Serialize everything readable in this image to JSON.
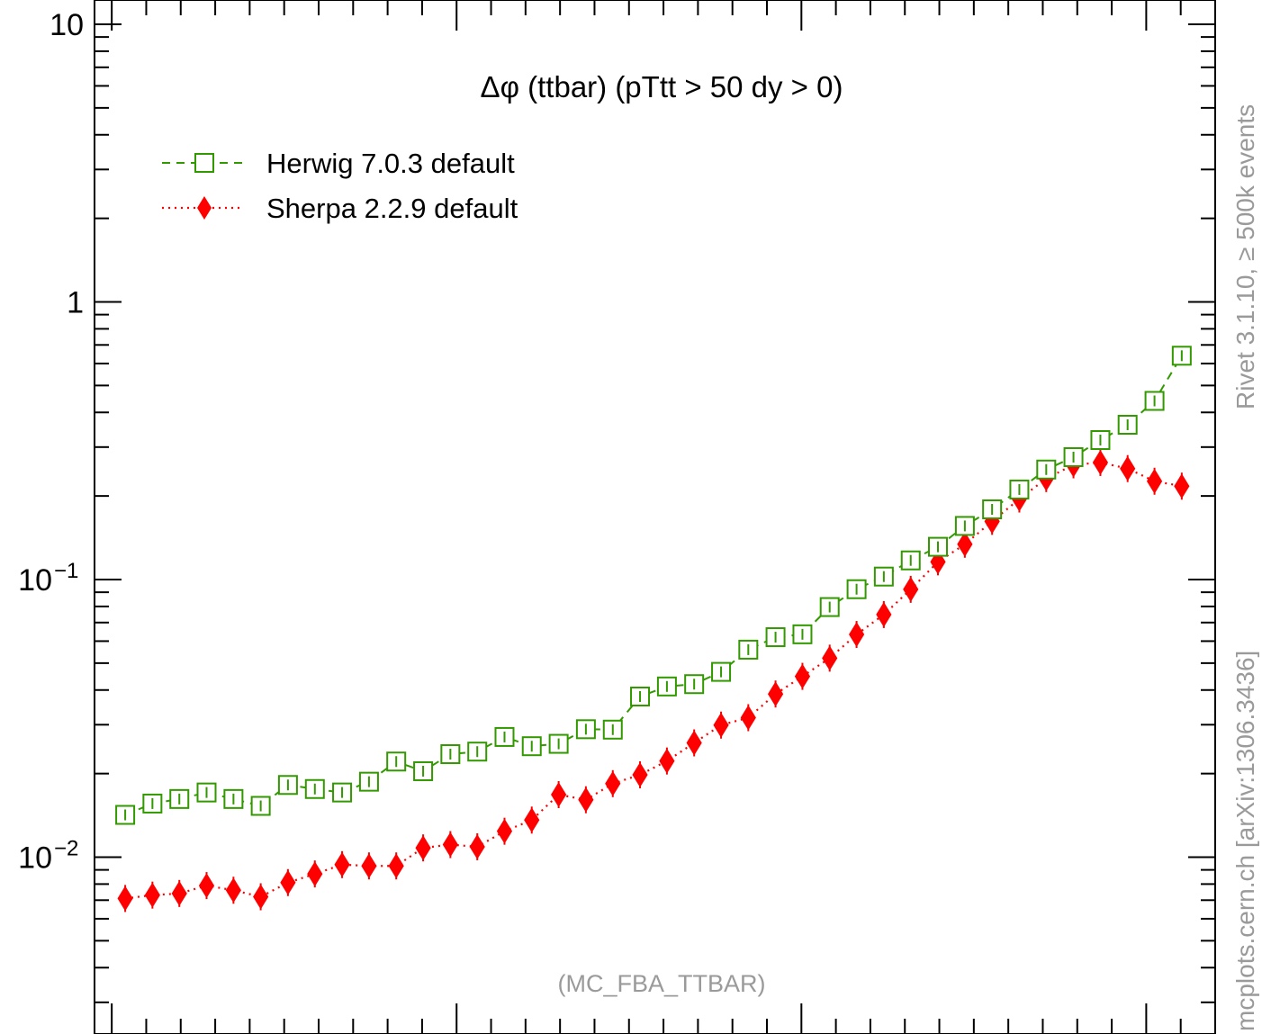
{
  "chart_data": {
    "type": "line",
    "title": "Δφ (ttbar) (pTtt > 50 dy > 0)",
    "x_range": [
      -0.05,
      3.2
    ],
    "y_range": [
      0.003,
      10
    ],
    "y_scale": "log",
    "y_ticks": [
      {
        "value": 10,
        "label": "10",
        "exp": ""
      },
      {
        "value": 1,
        "label": "1",
        "exp": ""
      },
      {
        "value": 0.1,
        "label": "10",
        "exp": "−1"
      },
      {
        "value": 0.01,
        "label": "10",
        "exp": "−2"
      }
    ],
    "x_major_ticks": [
      0,
      1,
      2,
      3
    ],
    "legend_position": "top-left",
    "series": [
      {
        "name": "Herwig 7.0.3 default",
        "color": "#339900",
        "line": "dashed",
        "marker": "open-square",
        "x": [
          0.039,
          0.118,
          0.196,
          0.275,
          0.353,
          0.432,
          0.511,
          0.589,
          0.668,
          0.746,
          0.825,
          0.903,
          0.982,
          1.06,
          1.139,
          1.218,
          1.296,
          1.375,
          1.453,
          1.532,
          1.61,
          1.689,
          1.767,
          1.846,
          1.925,
          2.003,
          2.082,
          2.16,
          2.239,
          2.317,
          2.396,
          2.474,
          2.553,
          2.632,
          2.71,
          2.789,
          2.867,
          2.946,
          3.024,
          3.103
        ],
        "values": [
          0.0142,
          0.0156,
          0.0162,
          0.0171,
          0.0162,
          0.0153,
          0.0182,
          0.0176,
          0.0171,
          0.0187,
          0.0221,
          0.0204,
          0.0235,
          0.024,
          0.0271,
          0.0251,
          0.0256,
          0.0289,
          0.0288,
          0.0379,
          0.0412,
          0.042,
          0.0465,
          0.0559,
          0.062,
          0.0635,
          0.0796,
          0.0923,
          0.1025,
          0.1172,
          0.1312,
          0.156,
          0.179,
          0.211,
          0.249,
          0.276,
          0.318,
          0.361,
          0.44,
          0.64
        ]
      },
      {
        "name": "Sherpa 2.2.9 default",
        "color": "#ff0000",
        "line": "dotted",
        "marker": "filled-diamond",
        "x": [
          0.039,
          0.118,
          0.196,
          0.275,
          0.353,
          0.432,
          0.511,
          0.589,
          0.668,
          0.746,
          0.825,
          0.903,
          0.982,
          1.06,
          1.139,
          1.218,
          1.296,
          1.375,
          1.453,
          1.532,
          1.61,
          1.689,
          1.767,
          1.846,
          1.925,
          2.003,
          2.082,
          2.16,
          2.239,
          2.317,
          2.396,
          2.474,
          2.553,
          2.632,
          2.71,
          2.789,
          2.867,
          2.946,
          3.024,
          3.103
        ],
        "values": [
          0.0071,
          0.0073,
          0.0074,
          0.0079,
          0.0076,
          0.0072,
          0.0081,
          0.0087,
          0.0094,
          0.0093,
          0.0093,
          0.0108,
          0.0111,
          0.0109,
          0.0124,
          0.0136,
          0.0168,
          0.0161,
          0.0184,
          0.0198,
          0.0222,
          0.0258,
          0.0299,
          0.0318,
          0.0387,
          0.0448,
          0.0521,
          0.0634,
          0.0748,
          0.0922,
          0.1158,
          0.134,
          0.162,
          0.195,
          0.231,
          0.259,
          0.264,
          0.251,
          0.226,
          0.217
        ]
      }
    ],
    "annotation": "(MC_FBA_TTBAR)",
    "side_text_top": "Rivet 3.1.10, ≥ 500k events",
    "side_text_bottom": "mcplots.cern.ch [arXiv:1306.3436]"
  }
}
